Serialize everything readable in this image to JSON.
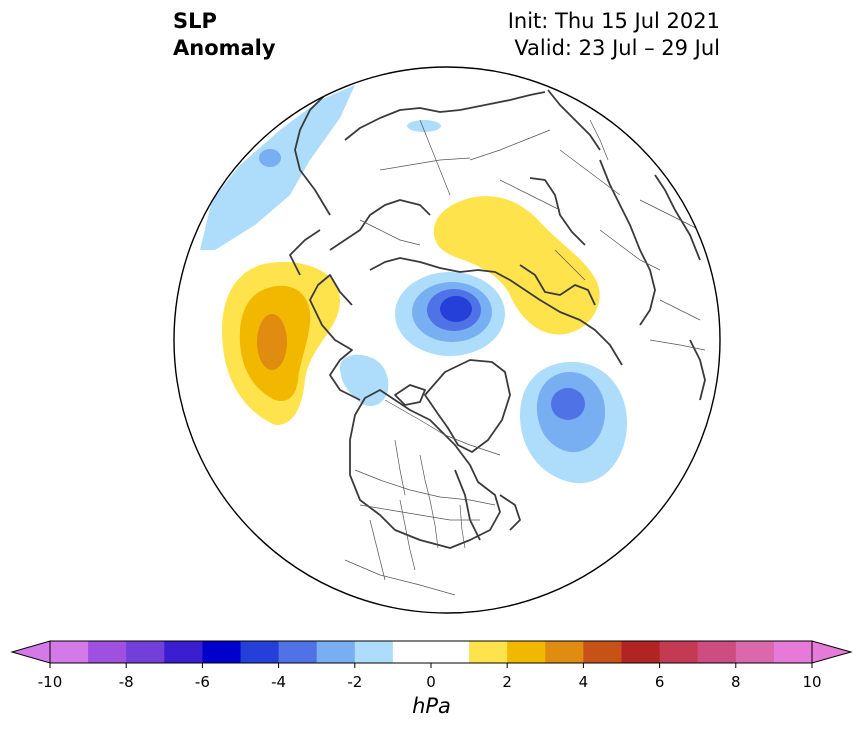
{
  "title": {
    "line1": "SLP",
    "line2": "Anomaly"
  },
  "subtitle": {
    "init": "Init: Thu 15 Jul 2021",
    "valid": "Valid: 23 Jul – 29 Jul"
  },
  "colorbar": {
    "units": "hPa",
    "ticks": [
      "-10",
      "-8",
      "-6",
      "-4",
      "-2",
      "0",
      "2",
      "4",
      "6",
      "8",
      "10"
    ],
    "colors": [
      "#d47ae8",
      "#a050e0",
      "#7040d8",
      "#3a1ed0",
      "#0000cc",
      "#2440d8",
      "#4f72e6",
      "#78aef2",
      "#aeddfb",
      "#ffffff",
      "#ffffff",
      "#ffe34d",
      "#f2b800",
      "#e08c10",
      "#c65218",
      "#b02424",
      "#c43a52",
      "#cd4c82",
      "#d968ac",
      "#e77ad8"
    ],
    "extend_left_color": "#d47ae8",
    "extend_right_color": "#e77ad8"
  },
  "anomaly_centers": [
    {
      "sign": "positive",
      "peak_hPa": 4,
      "region": "North Pacific"
    },
    {
      "sign": "negative",
      "peak_hPa": -5,
      "region": "Kara Sea / Arctic"
    },
    {
      "sign": "positive",
      "peak_hPa": 2,
      "region": "Western Siberia"
    },
    {
      "sign": "negative",
      "peak_hPa": -4,
      "region": "North Atlantic"
    }
  ]
}
